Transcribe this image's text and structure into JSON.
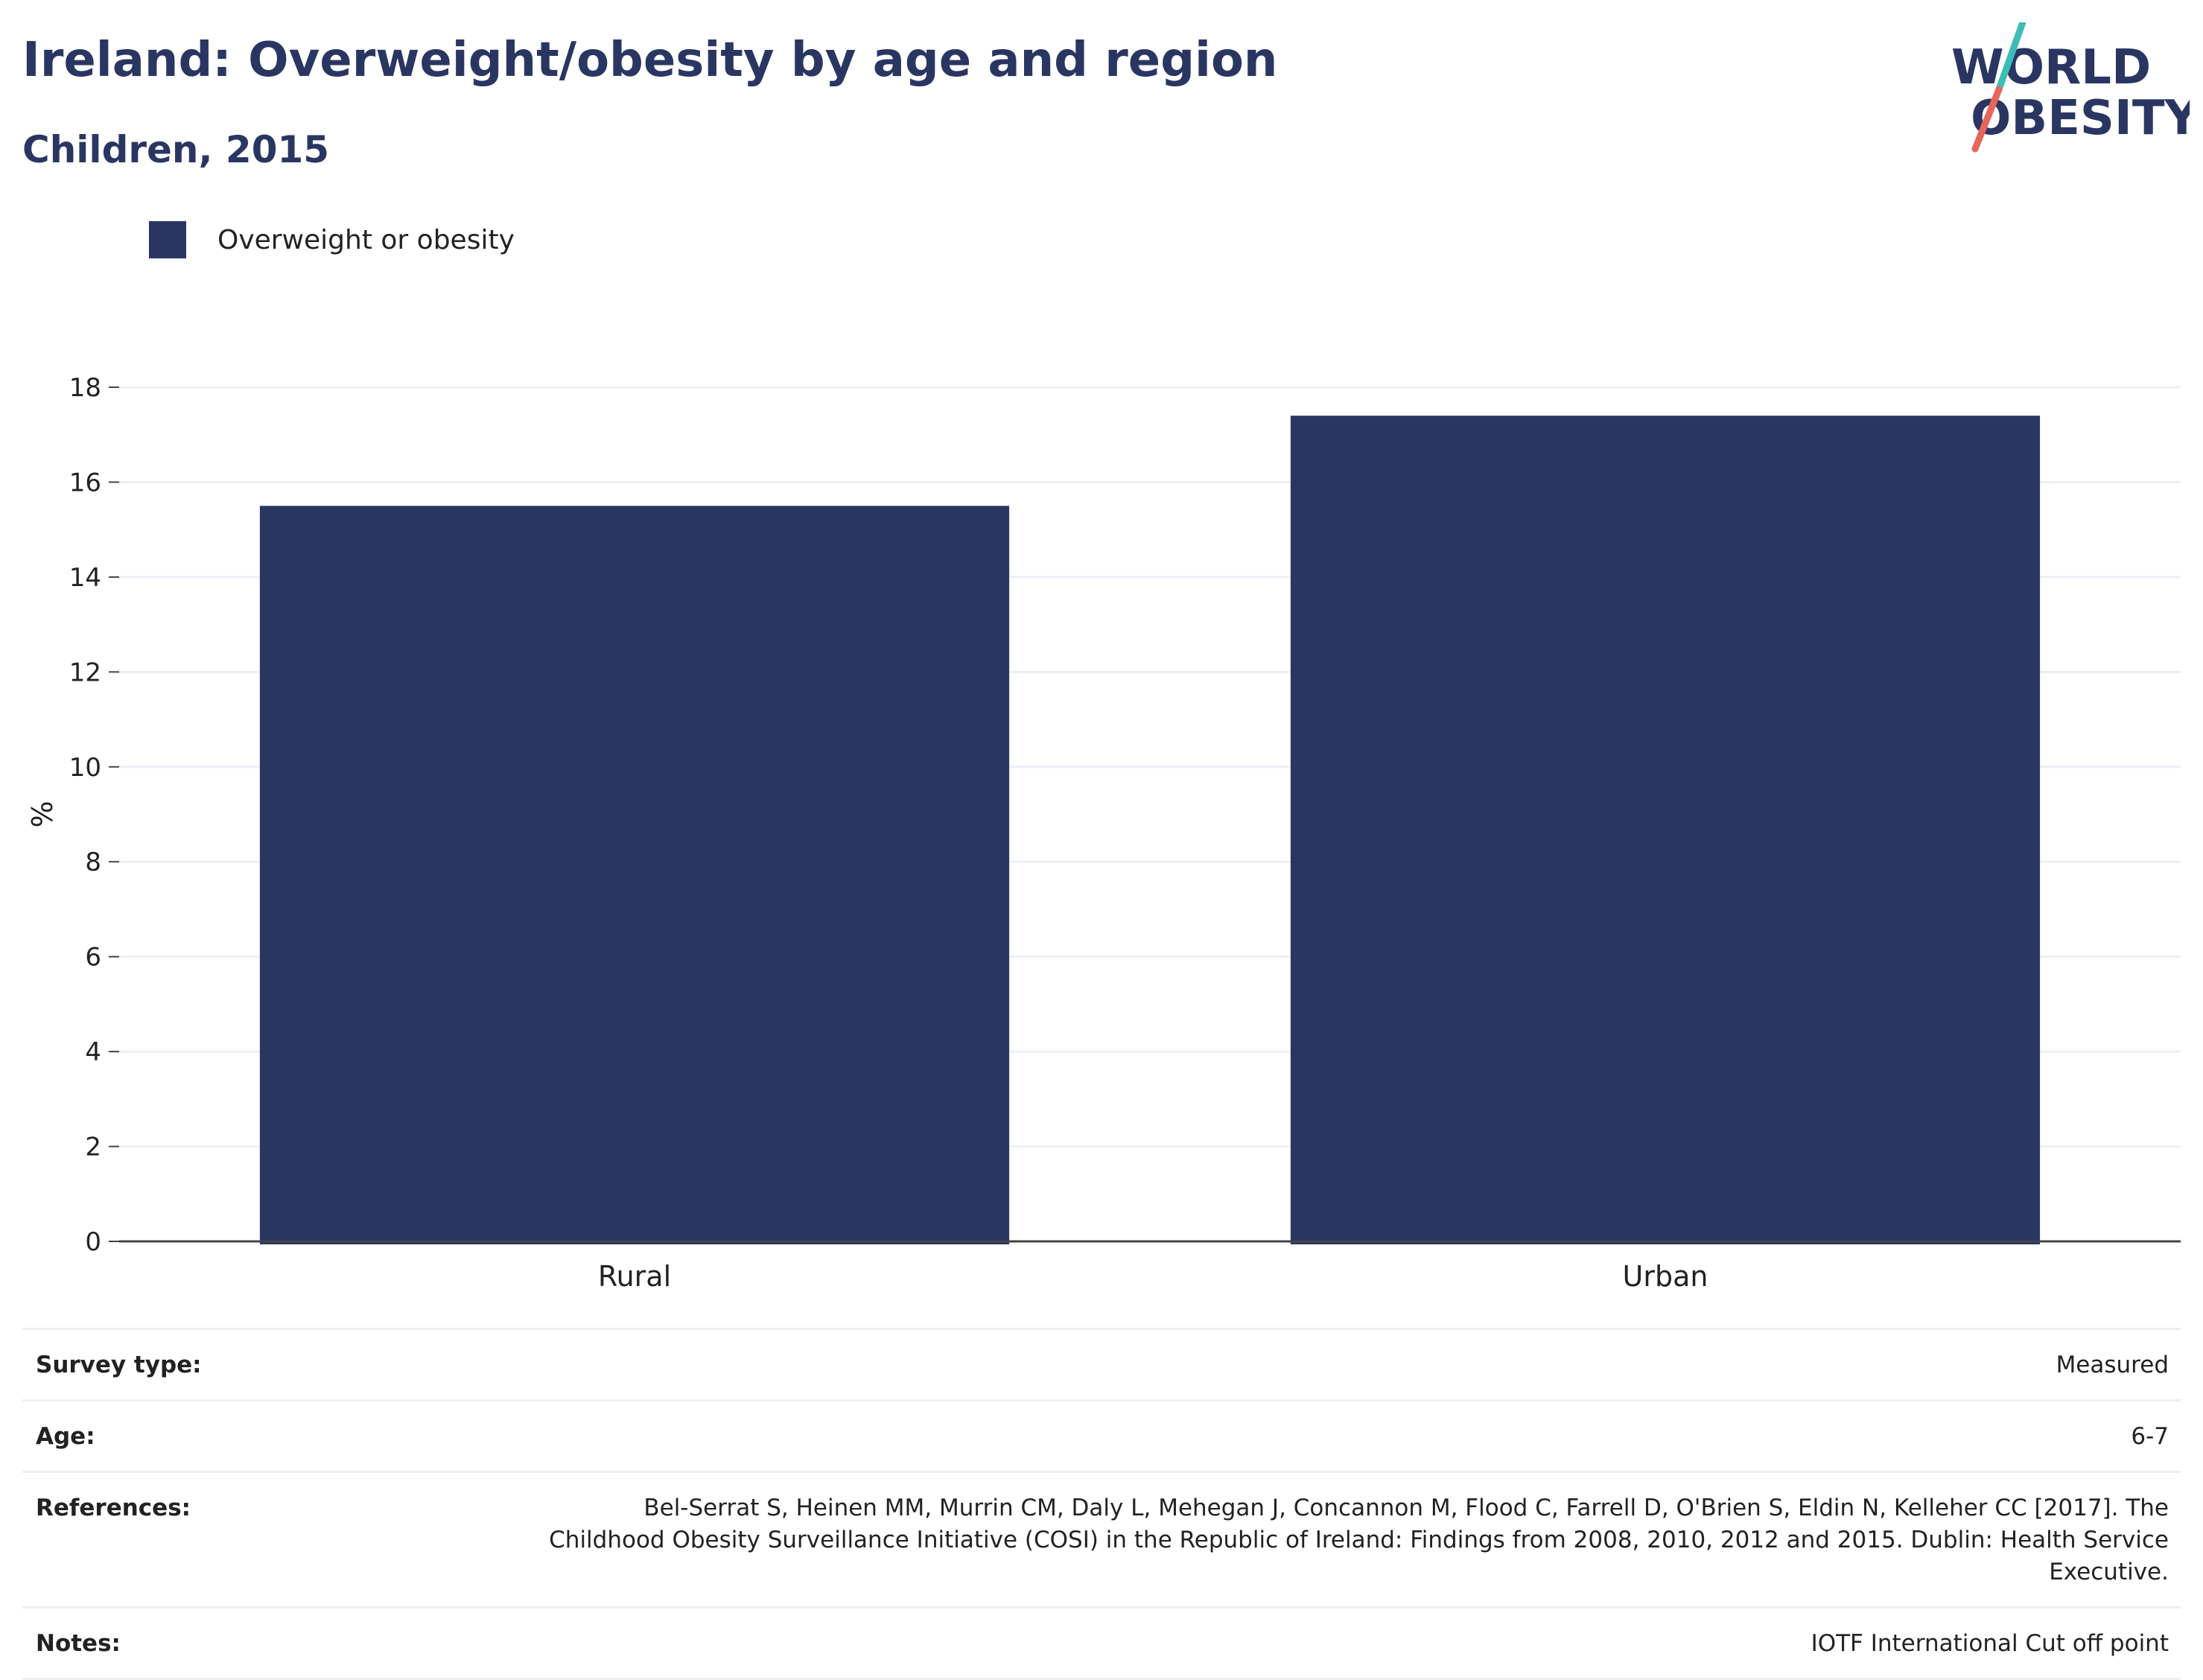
{
  "header": {
    "title": "Ireland: Overweight/obesity by age and region",
    "subtitle": "Children, 2015"
  },
  "logo": {
    "line1": "WORLD",
    "line2": "OBESITY",
    "colors": {
      "text": "#2a3662",
      "slash_top": "#3dbdb6",
      "slash_bottom": "#e8655a"
    }
  },
  "colors": {
    "bar": "#2a3662",
    "grid": "#eeeff5",
    "axis": "#444444",
    "text": "#2a3662"
  },
  "chart_data": {
    "type": "bar",
    "title": "Ireland: Overweight/obesity by age and region",
    "subtitle": "Children, 2015",
    "categories": [
      "Rural",
      "Urban"
    ],
    "series": [
      {
        "name": "Overweight or obesity",
        "values": [
          15.5,
          17.4
        ]
      }
    ],
    "xlabel": "",
    "ylabel": "%",
    "ylim": [
      0,
      18
    ],
    "yticks": [
      0,
      2,
      4,
      6,
      8,
      10,
      12,
      14,
      16,
      18
    ],
    "grid": true,
    "legend_position": "top-left"
  },
  "details": [
    {
      "label": "Survey type:",
      "value": "Measured"
    },
    {
      "label": "Age:",
      "value": "6-7"
    },
    {
      "label": "References:",
      "value": "Bel-Serrat S, Heinen MM, Murrin CM, Daly L, Mehegan J, Concannon M, Flood C, Farrell D, O'Brien S, Eldin N, Kelleher CC [2017]. The Childhood Obesity Surveillance Initiative (COSI) in the Republic of Ireland: Findings from 2008, 2010, 2012 and 2015. Dublin: Health Service Executive."
    },
    {
      "label": "Notes:",
      "value": "IOTF International Cut off point"
    }
  ]
}
